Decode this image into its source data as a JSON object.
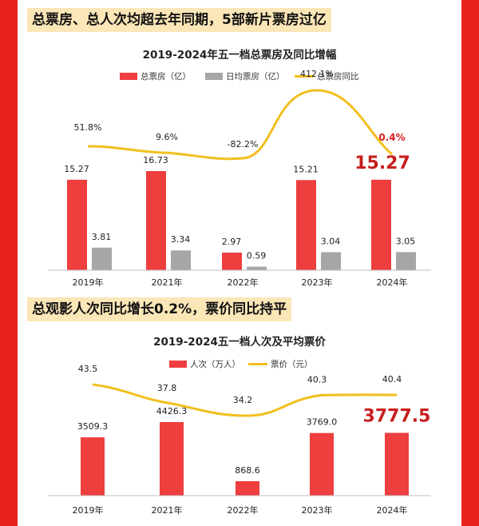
{
  "headlines": {
    "top": "总票房、总人次均超去年同期，5部新片票房过亿",
    "bottom": "总观影人次同比增长0.2%，票价同比持平"
  },
  "colors": {
    "bar_primary": "#ee3e3e",
    "bar_secondary": "#a6a6a6",
    "line": "#f2bf1e",
    "highlight": "#c81e1e",
    "page_bg": "#e8231e"
  },
  "chart_data": [
    {
      "type": "bar",
      "title": "2019-2024年五一档总票房及同比增幅",
      "categories": [
        "2019年",
        "2021年",
        "2022年",
        "2023年",
        "2024年"
      ],
      "series": [
        {
          "name": "总票房（亿）",
          "kind": "bar",
          "values": [
            15.27,
            16.73,
            2.97,
            15.21,
            15.27
          ],
          "value_labels": [
            "15.27",
            "16.73",
            "2.97",
            "15.21",
            "15.27"
          ]
        },
        {
          "name": "日均票房（亿）",
          "kind": "bar",
          "values": [
            3.81,
            3.34,
            0.59,
            3.04,
            3.05
          ],
          "value_labels": [
            "3.81",
            "3.34",
            "0.59",
            "3.04",
            "3.05"
          ]
        },
        {
          "name": "总票房同比",
          "kind": "line",
          "values": [
            51.8,
            9.6,
            -82.2,
            412.1,
            0.4
          ],
          "value_labels": [
            "51.8%",
            "9.6%",
            "-82.2%",
            "412.1%",
            "0.4%"
          ]
        }
      ],
      "highlight": {
        "category": "2024年",
        "value_label": "15.27",
        "pct_label": "0.4%"
      },
      "legend_position": "top",
      "grid": false
    },
    {
      "type": "bar",
      "title": "2019-2024五一档人次及平均票价",
      "categories": [
        "2019年",
        "2021年",
        "2022年",
        "2023年",
        "2024年"
      ],
      "series": [
        {
          "name": "人次（万人）",
          "kind": "bar",
          "values": [
            3509.3,
            4426.3,
            868.6,
            3769.0,
            3777.5
          ],
          "value_labels": [
            "3509.3",
            "4426.3",
            "868.6",
            "3769.0",
            "3777.5"
          ]
        },
        {
          "name": "票价（元）",
          "kind": "line",
          "values": [
            43.5,
            37.8,
            34.2,
            40.3,
            40.4
          ],
          "value_labels": [
            "43.5",
            "37.8",
            "34.2",
            "40.3",
            "40.4"
          ]
        }
      ],
      "highlight": {
        "category": "2024年",
        "value_label": "3777.5"
      },
      "legend_position": "top",
      "grid": false
    }
  ]
}
